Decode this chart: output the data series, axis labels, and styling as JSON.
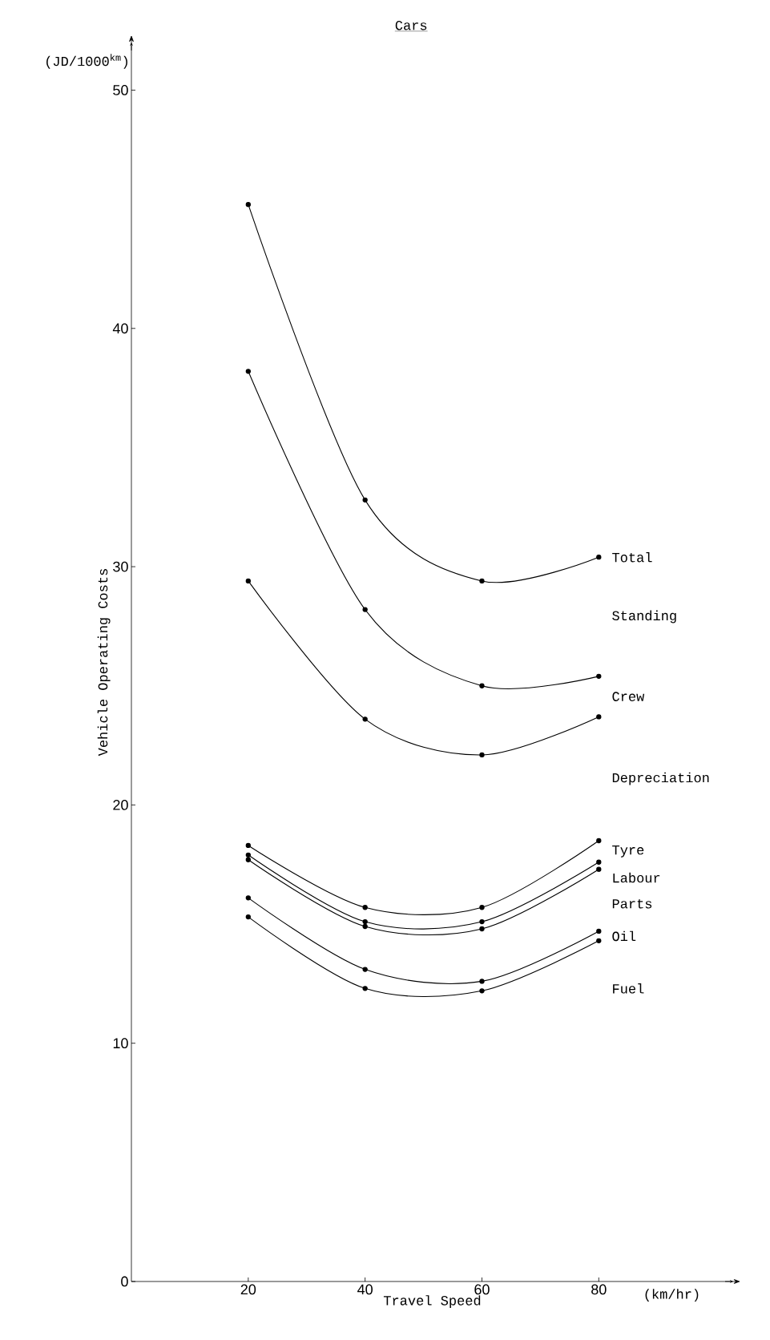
{
  "chart_data": {
    "type": "line",
    "title": "Cars",
    "xlabel": "Travel Speed",
    "ylabel": "Vehicle Operating Costs",
    "x": [
      20,
      40,
      60,
      80
    ],
    "series": [
      {
        "color": "#000000",
        "values": [
          45.2,
          32.8,
          29.4,
          30.4
        ]
      },
      {
        "color": "#000000",
        "values": [
          38.2,
          28.2,
          25.0,
          25.4
        ]
      },
      {
        "color": "#000000",
        "values": [
          29.4,
          23.6,
          22.1,
          23.7
        ]
      },
      {
        "color": "#000000",
        "values": [
          18.3,
          15.7,
          15.7,
          18.5
        ]
      },
      {
        "color": "#000000",
        "values": [
          17.9,
          15.1,
          15.1,
          17.6
        ]
      },
      {
        "color": "#000000",
        "values": [
          17.7,
          14.9,
          14.8,
          17.3
        ]
      },
      {
        "color": "#000000",
        "values": [
          16.1,
          13.1,
          12.6,
          14.7
        ]
      },
      {
        "color": "#000000",
        "values": [
          15.3,
          12.3,
          12.2,
          14.3
        ]
      }
    ],
    "annotations": [
      "(JD/1000$^{km}$)",
      "(km/hr)",
      "Total",
      "Standing",
      "Crew",
      "Depreciation",
      "Tyre",
      "Labour",
      "Parts",
      "Oil",
      "Fuel"
    ],
    "xlim": [
      0,
      103
    ],
    "ylim": [
      0,
      52
    ],
    "xticks": [
      20,
      40,
      60,
      80
    ],
    "yticks": [
      0,
      10,
      20,
      30,
      40,
      50
    ],
    "marker": "circle",
    "line_style": "solid",
    "grid": false
  }
}
